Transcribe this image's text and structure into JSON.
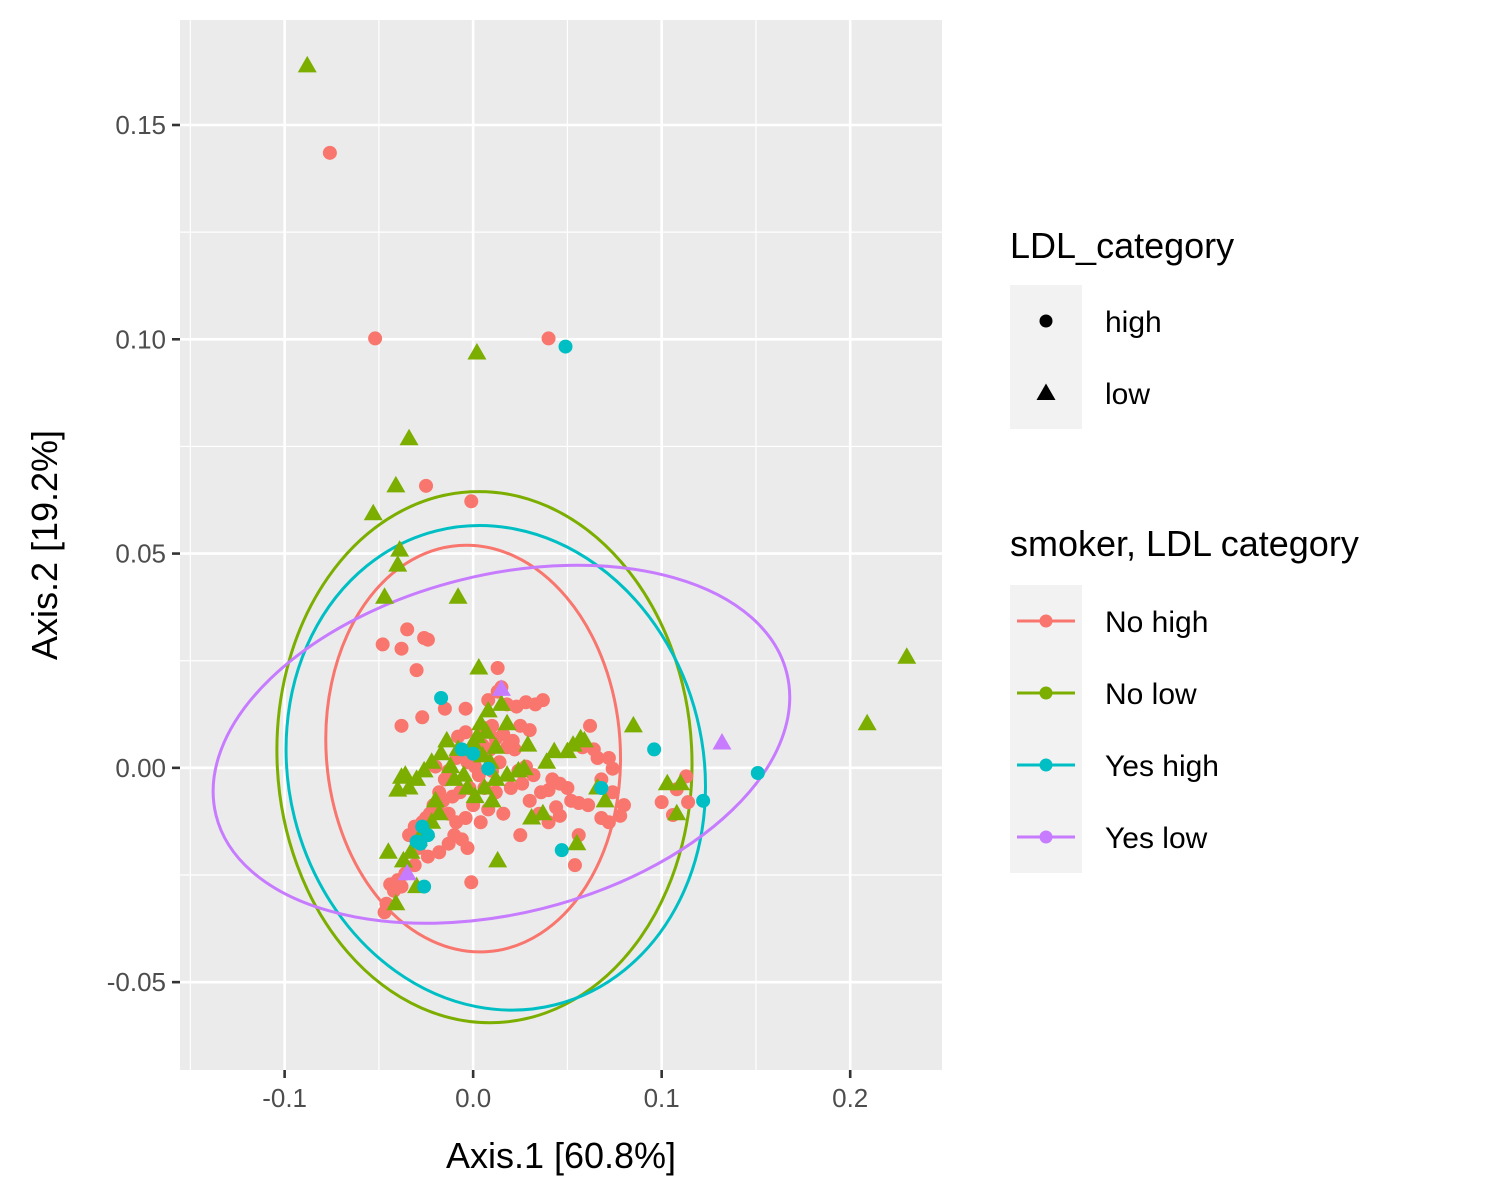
{
  "chart_data": {
    "type": "scatter",
    "xlabel": "Axis.1   [60.8%]",
    "ylabel": "Axis.2   [19.2%]",
    "xlim": [
      -0.1555,
      0.2487
    ],
    "ylim": [
      -0.0705,
      0.1745
    ],
    "x_ticks": [
      -0.1,
      0.0,
      0.1,
      0.2
    ],
    "x_tick_labels": [
      "-0.1",
      "0.0",
      "0.1",
      "0.2"
    ],
    "y_ticks": [
      -0.05,
      0.0,
      0.05,
      0.1,
      0.15
    ],
    "y_tick_labels": [
      "-0.05",
      "0.00",
      "0.05",
      "0.10",
      "0.15"
    ],
    "grid": true,
    "legend_position": "right",
    "legends": [
      {
        "title": "LDL_category",
        "entries": [
          {
            "label": "high",
            "shape": "circle"
          },
          {
            "label": "low",
            "shape": "triangle"
          }
        ]
      },
      {
        "title": "smoker, LDL category",
        "entries": [
          {
            "label": "No high",
            "color": "#F8766D"
          },
          {
            "label": "No low",
            "color": "#7CAE00"
          },
          {
            "label": "Yes high",
            "color": "#00BFC4"
          },
          {
            "label": "Yes low",
            "color": "#C77CFF"
          }
        ]
      }
    ],
    "series": [
      {
        "name": "No high",
        "color": "#F8766D",
        "shape": "circle",
        "ellipse": {
          "cx": 0.0,
          "cy": 0.0045,
          "rx": 0.078,
          "ry": 0.0475,
          "angle": 4
        },
        "points": [
          [
            -0.076,
            0.1435
          ],
          [
            -0.052,
            0.1002
          ],
          [
            0.04,
            0.1002
          ],
          [
            -0.025,
            0.0658
          ],
          [
            -0.001,
            0.0622
          ],
          [
            -0.048,
            0.0288
          ],
          [
            -0.035,
            0.0323
          ],
          [
            -0.038,
            0.0278
          ],
          [
            -0.026,
            0.0303
          ],
          [
            -0.024,
            0.0299
          ],
          [
            -0.03,
            0.0228
          ],
          [
            -0.038,
            0.0098
          ],
          [
            0.013,
            0.0233
          ],
          [
            0.008,
            0.0158
          ],
          [
            0.013,
            0.0178
          ],
          [
            0.015,
            0.0188
          ],
          [
            -0.015,
            0.0138
          ],
          [
            -0.027,
            0.0118
          ],
          [
            -0.004,
            0.0138
          ],
          [
            0.006,
            0.0093
          ],
          [
            0.01,
            0.0098
          ],
          [
            0.018,
            0.0148
          ],
          [
            0.023,
            0.0143
          ],
          [
            0.028,
            0.0153
          ],
          [
            0.033,
            0.0148
          ],
          [
            0.037,
            0.0158
          ],
          [
            0.025,
            0.0098
          ],
          [
            0.03,
            0.0088
          ],
          [
            0.062,
            0.0098
          ],
          [
            0.058,
            0.0048
          ],
          [
            0.064,
            0.0043
          ],
          [
            0.066,
            0.0023
          ],
          [
            0.072,
            0.0023
          ],
          [
            0.074,
            -0.0002
          ],
          [
            0.068,
            -0.0027
          ],
          [
            0.074,
            -0.0057
          ],
          [
            0.08,
            -0.0087
          ],
          [
            0.078,
            -0.0112
          ],
          [
            0.072,
            -0.0127
          ],
          [
            0.068,
            -0.0117
          ],
          [
            0.061,
            -0.0087
          ],
          [
            0.056,
            -0.0082
          ],
          [
            0.052,
            -0.0077
          ],
          [
            0.05,
            -0.0047
          ],
          [
            0.046,
            -0.0037
          ],
          [
            0.042,
            -0.0027
          ],
          [
            0.04,
            -0.0052
          ],
          [
            0.044,
            -0.0092
          ],
          [
            0.046,
            -0.0112
          ],
          [
            0.056,
            -0.0157
          ],
          [
            0.054,
            -0.0227
          ],
          [
            0.04,
            -0.0127
          ],
          [
            0.025,
            -0.0157
          ],
          [
            0.016,
            -0.0107
          ],
          [
            0.02,
            -0.0047
          ],
          [
            0.024,
            -0.0007
          ],
          [
            0.028,
            0.0003
          ],
          [
            0.022,
            0.0043
          ],
          [
            0.018,
            0.0048
          ],
          [
            0.014,
            0.0013
          ],
          [
            0.01,
            -0.0007
          ],
          [
            0.006,
            -0.0047
          ],
          [
            0.0,
            -0.0087
          ],
          [
            0.004,
            -0.0127
          ],
          [
            -0.004,
            -0.0117
          ],
          [
            -0.009,
            -0.0127
          ],
          [
            -0.013,
            -0.0107
          ],
          [
            -0.019,
            -0.0097
          ],
          [
            -0.023,
            -0.0107
          ],
          [
            -0.027,
            -0.0127
          ],
          [
            -0.031,
            -0.0137
          ],
          [
            -0.034,
            -0.0157
          ],
          [
            -0.029,
            -0.0187
          ],
          [
            -0.024,
            -0.0207
          ],
          [
            -0.018,
            -0.0197
          ],
          [
            -0.013,
            -0.0177
          ],
          [
            -0.01,
            -0.0157
          ],
          [
            -0.006,
            -0.0167
          ],
          [
            -0.003,
            -0.0187
          ],
          [
            -0.001,
            -0.0267
          ],
          [
            -0.031,
            -0.0227
          ],
          [
            -0.036,
            -0.0247
          ],
          [
            -0.04,
            -0.0262
          ],
          [
            -0.044,
            -0.0272
          ],
          [
            -0.042,
            -0.0287
          ],
          [
            -0.046,
            -0.0317
          ],
          [
            -0.047,
            -0.0337
          ],
          [
            -0.038,
            -0.0277
          ],
          [
            -0.03,
            -0.0147
          ],
          [
            -0.025,
            -0.0117
          ],
          [
            -0.021,
            -0.0087
          ],
          [
            -0.018,
            -0.0057
          ],
          [
            -0.015,
            -0.0027
          ],
          [
            -0.013,
            -0.0007
          ],
          [
            -0.009,
            0.0023
          ],
          [
            -0.006,
            0.0033
          ],
          [
            -0.003,
            0.0013
          ],
          [
            0.001,
            0.0003
          ],
          [
            0.003,
            -0.0017
          ],
          [
            -0.002,
            -0.0047
          ],
          [
            -0.007,
            -0.0057
          ],
          [
            -0.011,
            -0.0067
          ],
          [
            -0.016,
            -0.0077
          ],
          [
            0.005,
            0.0053
          ],
          [
            0.009,
            0.0043
          ],
          [
            0.012,
            0.0068
          ],
          [
            0.016,
            0.0078
          ],
          [
            0.021,
            0.0063
          ],
          [
            -0.008,
            0.0073
          ],
          [
            -0.004,
            0.0083
          ],
          [
            0.1,
            -0.008
          ],
          [
            0.108,
            -0.005
          ],
          [
            0.113,
            -0.002
          ],
          [
            0.114,
            -0.008
          ],
          [
            0.106,
            -0.011
          ],
          [
            -0.02,
            0.0003
          ],
          [
            0.026,
            -0.0037
          ],
          [
            0.032,
            -0.0017
          ],
          [
            0.036,
            -0.0057
          ],
          [
            0.035,
            -0.0107
          ],
          [
            0.03,
            -0.0077
          ],
          [
            0.012,
            -0.0057
          ],
          [
            0.008,
            -0.0097
          ]
        ]
      },
      {
        "name": "No low",
        "color": "#7CAE00",
        "shape": "triangle",
        "ellipse": {
          "cx": 0.006,
          "cy": 0.0025,
          "rx": 0.11,
          "ry": 0.062,
          "angle": 3
        },
        "points": [
          [
            -0.088,
            0.1638
          ],
          [
            0.002,
            0.0968
          ],
          [
            -0.034,
            0.0768
          ],
          [
            -0.041,
            0.0658
          ],
          [
            -0.053,
            0.0593
          ],
          [
            -0.039,
            0.0508
          ],
          [
            -0.04,
            0.0473
          ],
          [
            -0.047,
            0.0398
          ],
          [
            -0.008,
            0.0398
          ],
          [
            0.003,
            0.0233
          ],
          [
            0.23,
            0.0258
          ],
          [
            0.209,
            0.0103
          ],
          [
            0.085,
            0.0098
          ],
          [
            0.05,
            0.0038
          ],
          [
            0.053,
            0.0053
          ],
          [
            0.057,
            0.0068
          ],
          [
            0.059,
            0.0063
          ],
          [
            0.043,
            0.0038
          ],
          [
            0.039,
            0.0013
          ],
          [
            0.029,
            0.0053
          ],
          [
            0.027,
            -0.0002
          ],
          [
            0.024,
            -0.0007
          ],
          [
            0.018,
            -0.0017
          ],
          [
            0.012,
            -0.0027
          ],
          [
            0.009,
            0.0013
          ],
          [
            0.005,
            0.0028
          ],
          [
            0.002,
            0.0073
          ],
          [
            0.004,
            0.0103
          ],
          [
            0.008,
            0.0133
          ],
          [
            0.015,
            0.0148
          ],
          [
            0.018,
            0.0103
          ],
          [
            -0.014,
            0.0063
          ],
          [
            -0.017,
            0.0033
          ],
          [
            -0.022,
            0.0013
          ],
          [
            -0.026,
            -0.0007
          ],
          [
            -0.03,
            -0.0027
          ],
          [
            -0.034,
            -0.0047
          ],
          [
            -0.036,
            -0.0017
          ],
          [
            -0.038,
            -0.0022
          ],
          [
            -0.04,
            -0.0052
          ],
          [
            -0.02,
            -0.0077
          ],
          [
            -0.018,
            -0.0107
          ],
          [
            -0.022,
            -0.0127
          ],
          [
            -0.025,
            -0.0147
          ],
          [
            -0.029,
            -0.0167
          ],
          [
            -0.033,
            -0.0197
          ],
          [
            -0.037,
            -0.0217
          ],
          [
            -0.045,
            -0.0197
          ],
          [
            -0.03,
            -0.0277
          ],
          [
            -0.041,
            -0.0317
          ],
          [
            0.013,
            -0.0217
          ],
          [
            0.037,
            -0.0107
          ],
          [
            0.031,
            -0.0117
          ],
          [
            0.055,
            -0.0177
          ],
          [
            0.07,
            -0.0077
          ],
          [
            0.066,
            -0.0047
          ],
          [
            0.103,
            -0.0037
          ],
          [
            0.11,
            -0.0037
          ],
          [
            0.108,
            -0.0107
          ],
          [
            -0.005,
            -0.0017
          ],
          [
            -0.003,
            -0.0047
          ],
          [
            0.001,
            -0.0067
          ],
          [
            0.006,
            -0.0047
          ],
          [
            0.01,
            -0.0077
          ],
          [
            -0.01,
            -0.0027
          ],
          [
            -0.012,
            0.0003
          ],
          [
            -0.008,
            0.0043
          ],
          [
            0.0,
            0.0058
          ],
          [
            0.007,
            0.0083
          ],
          [
            0.012,
            0.0048
          ]
        ]
      },
      {
        "name": "Yes high",
        "color": "#00BFC4",
        "shape": "circle",
        "ellipse": {
          "cx": 0.012,
          "cy": 0.0,
          "rx": 0.11,
          "ry": 0.057,
          "angle": 14
        },
        "points": [
          [
            0.049,
            0.0983
          ],
          [
            -0.017,
            0.0163
          ],
          [
            -0.006,
            0.0043
          ],
          [
            0.0,
            0.0033
          ],
          [
            0.008,
            -0.0002
          ],
          [
            0.096,
            0.0043
          ],
          [
            0.151,
            -0.0012
          ],
          [
            0.122,
            -0.0077
          ],
          [
            0.068,
            -0.0047
          ],
          [
            0.047,
            -0.0192
          ],
          [
            -0.026,
            -0.0277
          ],
          [
            -0.028,
            -0.0177
          ],
          [
            -0.03,
            -0.0172
          ],
          [
            -0.024,
            -0.0157
          ],
          [
            -0.027,
            -0.0137
          ]
        ]
      },
      {
        "name": "Yes low",
        "color": "#C77CFF",
        "shape": "triangle",
        "ellipse": {
          "cx": 0.015,
          "cy": 0.0055,
          "rx": 0.156,
          "ry": 0.0395,
          "angle": 14
        },
        "points": [
          [
            0.132,
            0.0058
          ],
          [
            0.015,
            0.0183
          ],
          [
            -0.035,
            -0.0247
          ]
        ]
      }
    ]
  }
}
